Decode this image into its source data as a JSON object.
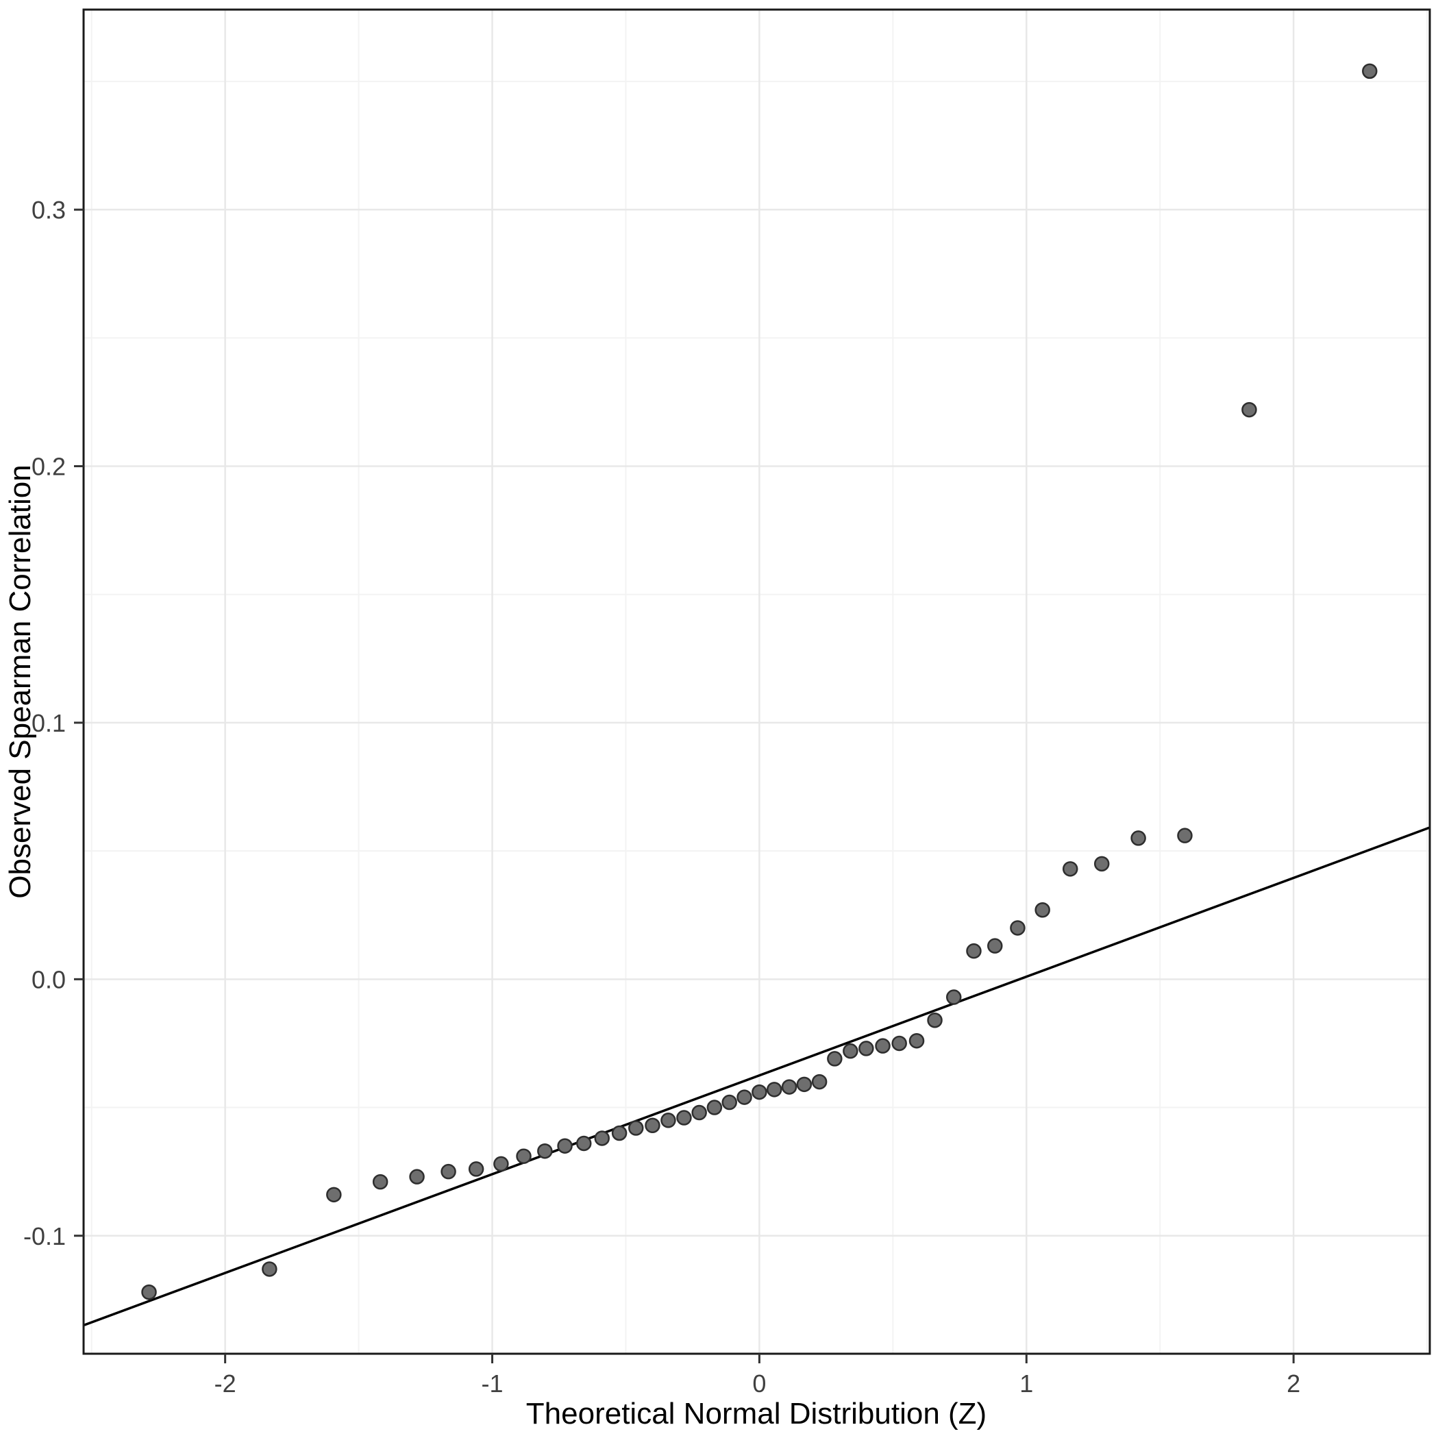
{
  "chart_data": {
    "type": "scatter",
    "title": "",
    "xlabel": "Theoretical Normal Distribution (Z)",
    "ylabel": "Observed Spearman Correlation",
    "xlim": [
      -2.53,
      2.51
    ],
    "ylim": [
      -0.146,
      0.378
    ],
    "grid": true,
    "legend": "none",
    "x_ticks": [
      {
        "v": -2,
        "label": "-2"
      },
      {
        "v": -1,
        "label": "-1"
      },
      {
        "v": 0,
        "label": "0"
      },
      {
        "v": 1,
        "label": "1"
      },
      {
        "v": 2,
        "label": "2"
      }
    ],
    "y_ticks": [
      {
        "v": -0.1,
        "label": "-0.1"
      },
      {
        "v": 0.0,
        "label": "0.0"
      },
      {
        "v": 0.1,
        "label": "0.1"
      },
      {
        "v": 0.2,
        "label": "0.2"
      },
      {
        "v": 0.3,
        "label": "0.3"
      }
    ],
    "x_minor": [
      -2.5,
      -1.5,
      -0.5,
      0.5,
      1.5,
      2.5
    ],
    "y_minor": [
      -0.15,
      -0.05,
      0.05,
      0.15,
      0.25,
      0.35
    ],
    "points": [
      [
        -2.285,
        -0.122
      ],
      [
        -1.834,
        -0.113
      ],
      [
        -1.593,
        -0.084
      ],
      [
        -1.419,
        -0.079
      ],
      [
        -1.282,
        -0.077
      ],
      [
        -1.164,
        -0.075
      ],
      [
        -1.06,
        -0.074
      ],
      [
        -0.967,
        -0.072
      ],
      [
        -0.882,
        -0.069
      ],
      [
        -0.803,
        -0.067
      ],
      [
        -0.728,
        -0.065
      ],
      [
        -0.657,
        -0.064
      ],
      [
        -0.589,
        -0.062
      ],
      [
        -0.524,
        -0.06
      ],
      [
        -0.462,
        -0.058
      ],
      [
        -0.4,
        -0.057
      ],
      [
        -0.341,
        -0.055
      ],
      [
        -0.282,
        -0.054
      ],
      [
        -0.225,
        -0.052
      ],
      [
        -0.168,
        -0.05
      ],
      [
        -0.112,
        -0.048
      ],
      [
        -0.056,
        -0.046
      ],
      [
        0.0,
        -0.044
      ],
      [
        0.056,
        -0.043
      ],
      [
        0.112,
        -0.042
      ],
      [
        0.168,
        -0.041
      ],
      [
        0.225,
        -0.04
      ],
      [
        0.282,
        -0.031
      ],
      [
        0.341,
        -0.028
      ],
      [
        0.4,
        -0.027
      ],
      [
        0.462,
        -0.026
      ],
      [
        0.524,
        -0.025
      ],
      [
        0.589,
        -0.024
      ],
      [
        0.657,
        -0.016
      ],
      [
        0.728,
        -0.007
      ],
      [
        0.803,
        0.011
      ],
      [
        0.882,
        0.013
      ],
      [
        0.967,
        0.02
      ],
      [
        1.06,
        0.027
      ],
      [
        1.164,
        0.043
      ],
      [
        1.282,
        0.045
      ],
      [
        1.419,
        0.055
      ],
      [
        1.593,
        0.056
      ],
      [
        1.834,
        0.222
      ],
      [
        2.285,
        0.354
      ]
    ],
    "reference_line": {
      "slope": 0.0385,
      "intercept": -0.0375
    },
    "style": {
      "background": "#ffffff",
      "grid_major": "#e8e8e8",
      "grid_minor": "#f3f3f3",
      "panel_border": "#1a1a1a",
      "tick_mark": "#333333",
      "line_color": "#000000",
      "point_fill": "#6e6e6e",
      "point_stroke": "#2e2e2e",
      "tick_label_color": "#404040",
      "axis_title_color": "#000000"
    }
  }
}
